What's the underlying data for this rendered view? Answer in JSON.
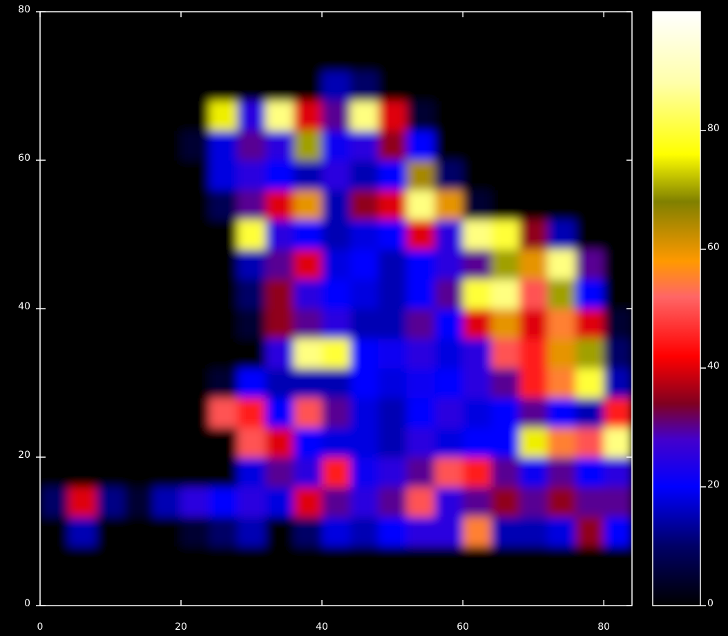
{
  "chart_data": {
    "type": "heatmap",
    "xbins": [
      0,
      4,
      8,
      12,
      16,
      20,
      24,
      28,
      32,
      36,
      40,
      44,
      48,
      52,
      56,
      60,
      64,
      68,
      72,
      76,
      80,
      84
    ],
    "ybins": [
      0,
      4,
      8,
      12,
      16,
      20,
      24,
      28,
      32,
      36,
      40,
      44,
      48,
      52,
      56,
      60,
      64,
      68,
      72,
      76,
      80
    ],
    "z": [
      [
        0,
        0,
        0,
        0,
        0,
        0,
        0,
        0,
        0,
        0,
        0,
        0,
        0,
        0,
        0,
        0,
        0,
        0,
        0,
        0,
        0
      ],
      [
        0,
        0,
        0,
        0,
        0,
        0,
        0,
        0,
        0,
        0,
        0,
        0,
        0,
        0,
        0,
        0,
        0,
        0,
        0,
        0,
        0
      ],
      [
        0,
        15,
        0,
        0,
        0,
        5,
        10,
        15,
        0,
        10,
        18,
        15,
        20,
        25,
        25,
        55,
        15,
        15,
        18,
        35,
        20
      ],
      [
        10,
        40,
        12,
        5,
        15,
        25,
        20,
        25,
        18,
        40,
        30,
        25,
        30,
        50,
        25,
        30,
        35,
        30,
        35,
        30,
        30
      ],
      [
        0,
        0,
        0,
        0,
        0,
        0,
        0,
        18,
        30,
        25,
        45,
        22,
        25,
        30,
        50,
        45,
        30,
        22,
        30,
        20,
        25
      ],
      [
        0,
        0,
        0,
        0,
        0,
        0,
        0,
        50,
        40,
        20,
        18,
        18,
        15,
        25,
        18,
        20,
        20,
        75,
        55,
        50,
        85
      ],
      [
        0,
        0,
        0,
        0,
        0,
        0,
        50,
        45,
        20,
        50,
        30,
        18,
        15,
        20,
        25,
        18,
        20,
        30,
        20,
        15,
        45
      ],
      [
        0,
        0,
        0,
        0,
        0,
        0,
        5,
        20,
        15,
        15,
        15,
        20,
        18,
        22,
        20,
        25,
        30,
        45,
        55,
        80,
        15
      ],
      [
        0,
        0,
        0,
        0,
        0,
        0,
        0,
        0,
        25,
        85,
        80,
        20,
        22,
        25,
        18,
        25,
        50,
        45,
        60,
        70,
        10
      ],
      [
        0,
        0,
        0,
        0,
        0,
        0,
        0,
        5,
        35,
        30,
        25,
        15,
        15,
        30,
        20,
        40,
        60,
        40,
        55,
        40,
        5
      ],
      [
        0,
        0,
        0,
        0,
        0,
        0,
        0,
        10,
        35,
        25,
        20,
        18,
        15,
        20,
        30,
        80,
        85,
        50,
        70,
        20,
        0
      ],
      [
        0,
        0,
        0,
        0,
        0,
        0,
        0,
        15,
        30,
        40,
        18,
        20,
        15,
        20,
        25,
        30,
        70,
        60,
        85,
        30,
        0
      ],
      [
        0,
        0,
        0,
        0,
        0,
        0,
        0,
        80,
        25,
        20,
        15,
        18,
        20,
        40,
        25,
        85,
        80,
        35,
        15,
        0,
        0
      ],
      [
        0,
        0,
        0,
        0,
        0,
        0,
        8,
        30,
        40,
        60,
        15,
        35,
        40,
        85,
        60,
        5,
        0,
        0,
        0,
        0,
        0
      ],
      [
        0,
        0,
        0,
        0,
        0,
        0,
        18,
        25,
        20,
        15,
        25,
        15,
        20,
        65,
        10,
        0,
        0,
        0,
        0,
        0,
        0
      ],
      [
        0,
        0,
        0,
        0,
        0,
        5,
        18,
        30,
        25,
        70,
        22,
        25,
        35,
        20,
        0,
        0,
        0,
        0,
        0,
        0,
        0
      ],
      [
        0,
        0,
        0,
        0,
        0,
        0,
        75,
        25,
        85,
        40,
        30,
        85,
        40,
        5,
        0,
        0,
        0,
        0,
        0,
        0,
        0
      ],
      [
        0,
        0,
        0,
        0,
        0,
        0,
        0,
        0,
        0,
        0,
        15,
        10,
        0,
        0,
        0,
        0,
        0,
        0,
        0,
        0,
        0
      ],
      [
        0,
        0,
        0,
        0,
        0,
        0,
        0,
        0,
        0,
        0,
        0,
        0,
        0,
        0,
        0,
        0,
        0,
        0,
        0,
        0,
        0
      ],
      [
        0,
        0,
        0,
        0,
        0,
        0,
        0,
        0,
        0,
        0,
        0,
        0,
        0,
        0,
        0,
        0,
        0,
        0,
        0,
        0,
        0
      ]
    ],
    "xlim": [
      0,
      84
    ],
    "xticks": [
      0,
      20,
      40,
      60,
      80
    ],
    "ylim": [
      0,
      80
    ],
    "yticks": [
      0,
      20,
      40,
      60,
      80
    ],
    "clim": [
      0,
      100
    ],
    "cticks": [
      0,
      20,
      40,
      60,
      80
    ],
    "colorscale": [
      [
        0,
        "#000000"
      ],
      [
        10,
        "#000066"
      ],
      [
        20,
        "#0000ff"
      ],
      [
        28,
        "#4400cc"
      ],
      [
        34,
        "#800020"
      ],
      [
        42,
        "#ff0000"
      ],
      [
        52,
        "#ff6666"
      ],
      [
        58,
        "#ff9900"
      ],
      [
        68,
        "#808000"
      ],
      [
        76,
        "#ffff00"
      ],
      [
        88,
        "#ffffaa"
      ],
      [
        100,
        "#ffffff"
      ]
    ]
  }
}
